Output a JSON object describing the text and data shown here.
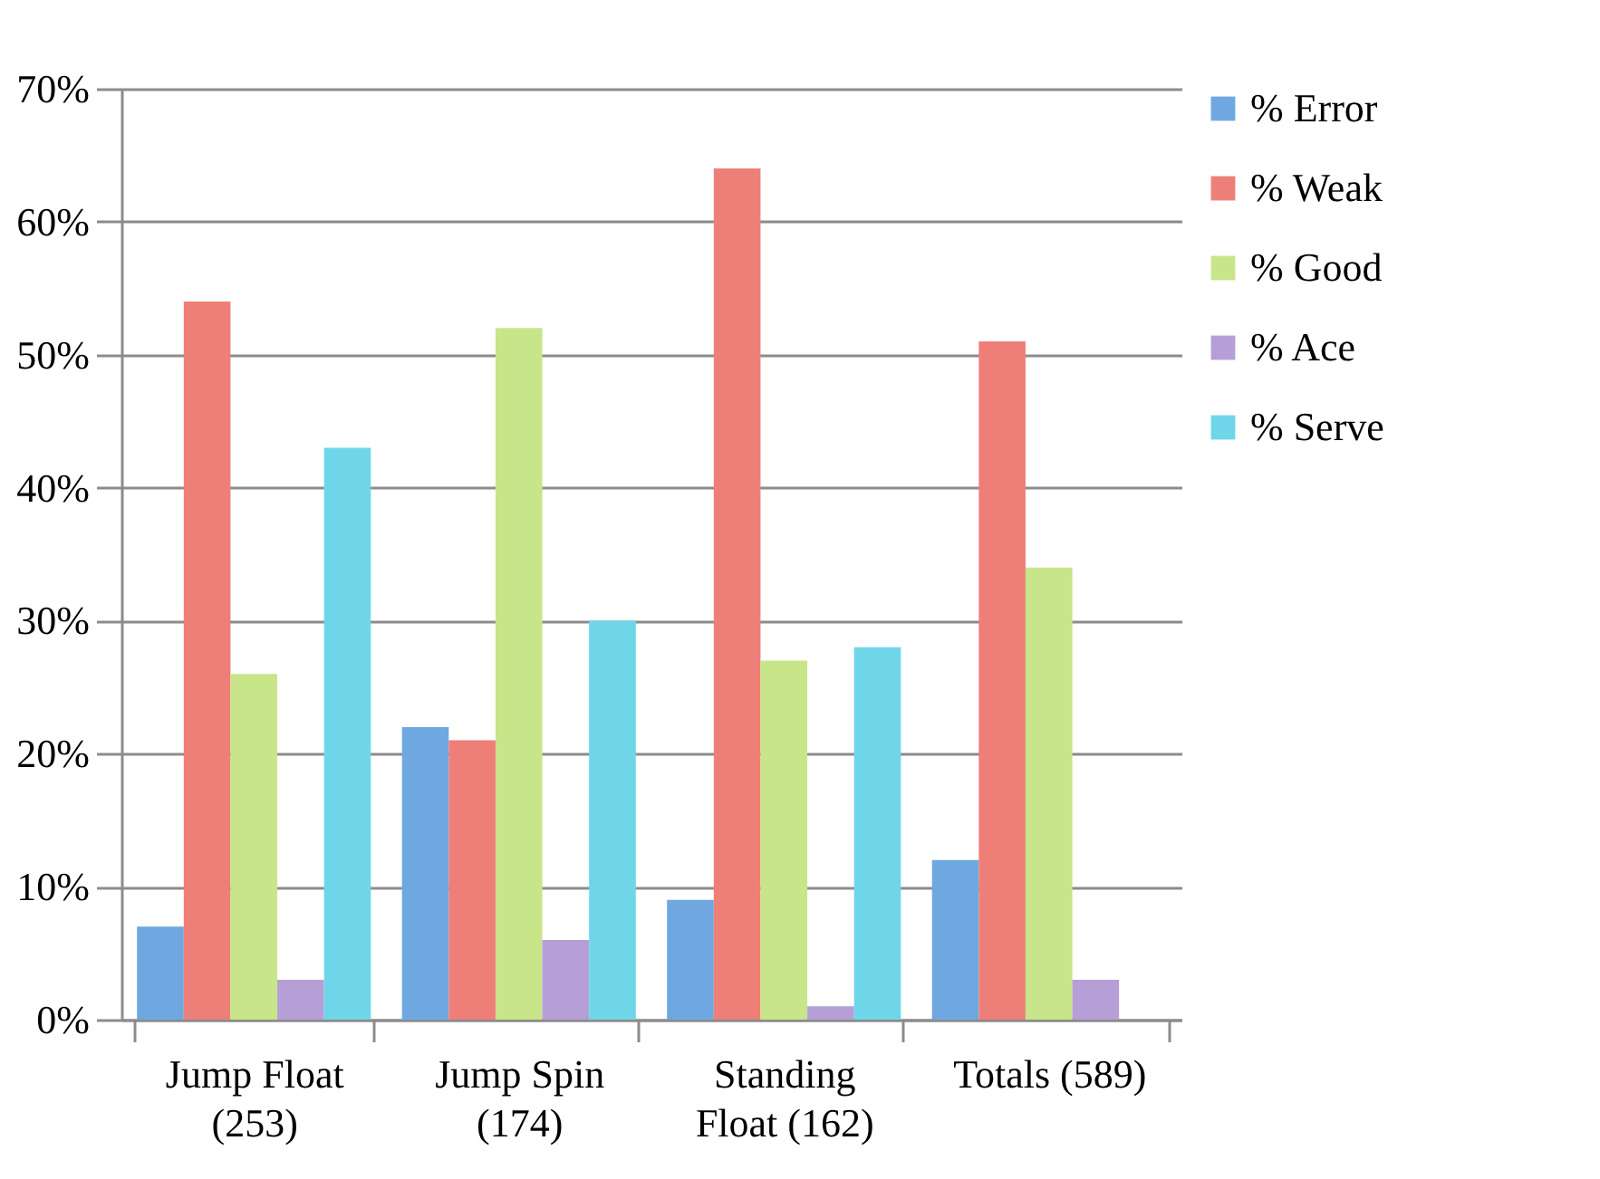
{
  "chart_data": {
    "type": "bar",
    "categories": [
      "Jump Float (253)",
      "Jump Spin (174)",
      "Standing Float (162)",
      "Totals (589)"
    ],
    "series": [
      {
        "name": "% Error",
        "color": "#6fa8e0",
        "values": [
          7,
          22,
          9,
          12
        ]
      },
      {
        "name": "% Weak",
        "color": "#ee7f78",
        "values": [
          54,
          21,
          64,
          51
        ]
      },
      {
        "name": "% Good",
        "color": "#c8e58a",
        "values": [
          26,
          52,
          27,
          34
        ]
      },
      {
        "name": "% Ace",
        "color": "#b59fd6",
        "values": [
          3,
          6,
          1,
          3
        ]
      },
      {
        "name": "% Serve",
        "color": "#6fd6ea",
        "values": [
          43,
          30,
          28,
          null
        ]
      }
    ],
    "ylim": [
      0,
      70
    ],
    "yticks": [
      {
        "value": 0,
        "label": "0%"
      },
      {
        "value": 10,
        "label": "10%"
      },
      {
        "value": 20,
        "label": "20%"
      },
      {
        "value": 30,
        "label": "30%"
      },
      {
        "value": 40,
        "label": "40%"
      },
      {
        "value": 50,
        "label": "50%"
      },
      {
        "value": 60,
        "label": "60%"
      },
      {
        "value": 70,
        "label": "70%"
      }
    ],
    "grid": "y",
    "legend": "right"
  }
}
